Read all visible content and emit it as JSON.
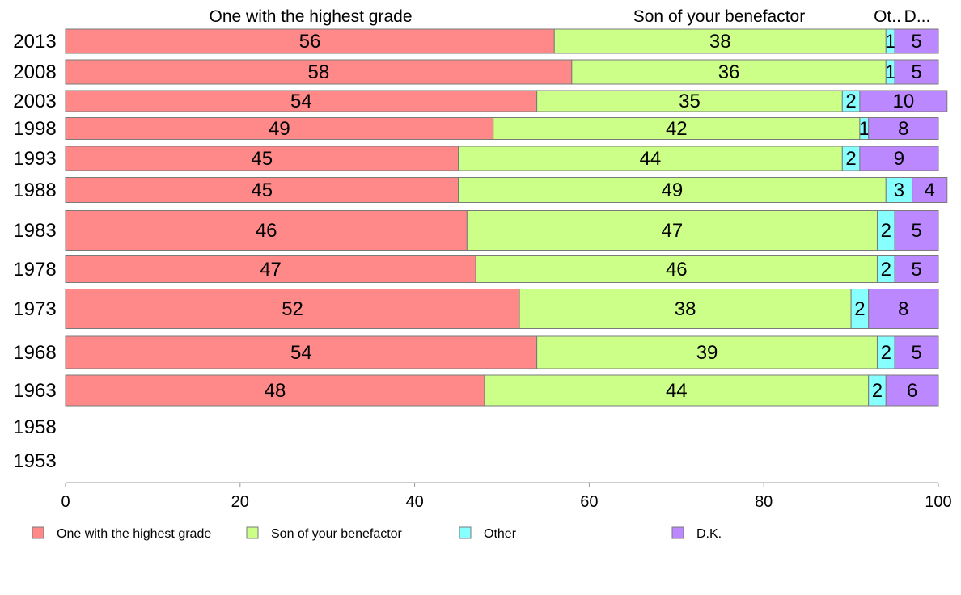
{
  "chart_data": {
    "type": "bar",
    "orientation": "horizontal",
    "stacked": true,
    "categories": [
      "2013",
      "2008",
      "2003",
      "1998",
      "1993",
      "1988",
      "1983",
      "1978",
      "1973",
      "1968",
      "1963",
      "1958",
      "1953"
    ],
    "series": [
      {
        "name": "One with the highest grade",
        "color": "#ff8888",
        "values": [
          56,
          58,
          54,
          49,
          45,
          45,
          46,
          47,
          52,
          54,
          48,
          null,
          null
        ]
      },
      {
        "name": "Son of your benefactor",
        "color": "#ccff88",
        "values": [
          38,
          36,
          35,
          42,
          44,
          49,
          47,
          46,
          38,
          39,
          44,
          null,
          null
        ]
      },
      {
        "name": "Other",
        "color": "#88ffff",
        "values": [
          1,
          1,
          2,
          1,
          2,
          3,
          2,
          2,
          2,
          2,
          2,
          null,
          null
        ]
      },
      {
        "name": "D.K.",
        "color": "#bb88ff",
        "values": [
          5,
          5,
          10,
          8,
          9,
          4,
          5,
          5,
          8,
          5,
          6,
          null,
          null
        ]
      }
    ],
    "column_headers": [
      "One with the highest grade",
      "Son of your benefactor",
      "Ot..",
      "D..."
    ],
    "xlim": [
      0,
      100
    ],
    "xticks": [
      "0",
      "20",
      "40",
      "60",
      "80",
      "100"
    ],
    "legend": {
      "placement": "bottom",
      "entries": [
        "One with the highest grade",
        "Son of your benefactor",
        "Other",
        "D.K."
      ]
    }
  }
}
